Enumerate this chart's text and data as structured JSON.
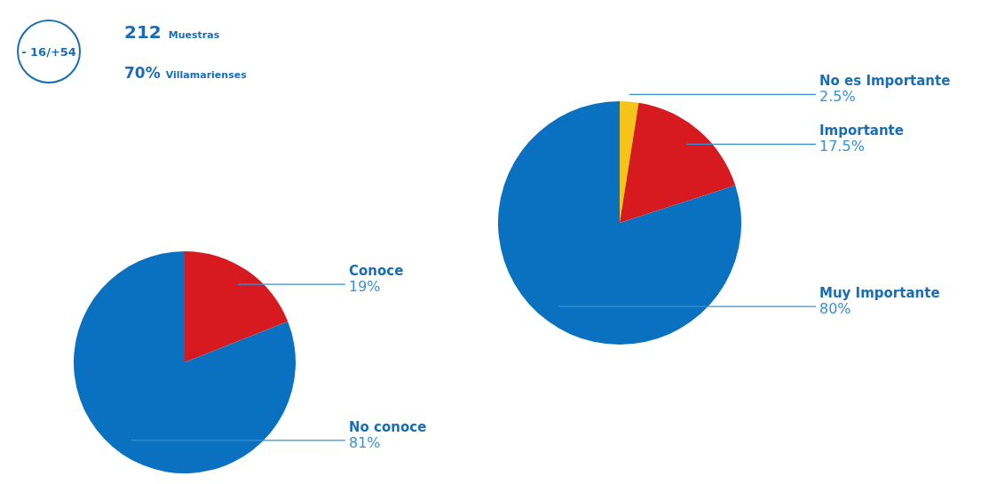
{
  "chart_data": [
    {
      "type": "other",
      "annotations": [
        "- 16/+54",
        "212",
        "Muestras",
        "70%",
        "Villamarienses"
      ]
    },
    {
      "type": "pie",
      "categories": [
        "Conoce",
        "No conoce"
      ],
      "values": [
        19,
        81
      ],
      "colors": [
        "#d71920",
        "#0a71c0"
      ],
      "value_labels": [
        "19%",
        "81%"
      ]
    },
    {
      "type": "pie",
      "categories": [
        "No es Importante",
        "Importante",
        "Muy Importante"
      ],
      "values": [
        2.5,
        17.5,
        80
      ],
      "colors": [
        "#f5c419",
        "#d71920",
        "#0a71c0"
      ],
      "value_labels": [
        "2.5%",
        "17.5%",
        "80%"
      ]
    }
  ]
}
